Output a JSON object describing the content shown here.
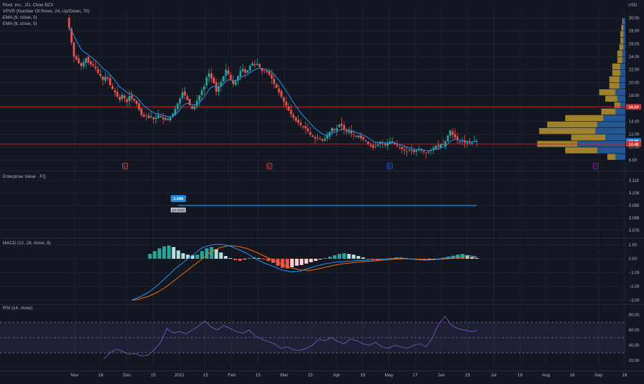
{
  "legend": {
    "title": "Root, Inc., 1D, Cboe BZX",
    "vpvr": "VPVR (Number Of Rows, 24, Up/Down, 70)",
    "ema1": "EMA (9, close, 0)",
    "ema2": "EMA (9, close, 0)"
  },
  "panes": {
    "ev": {
      "title": "Enterprise Value · FQ",
      "badge": "3.098",
      "sub": "Q4 2020"
    },
    "macd": {
      "title": "MACD (12, 26, close, 9)"
    },
    "rsi": {
      "title": "RSI (14, close)"
    }
  },
  "axes": {
    "price_currency": "USD",
    "price_ticks": [
      "30.00",
      "28.00",
      "26.00",
      "24.00",
      "22.00",
      "20.00",
      "18.00",
      "16.00",
      "14.00",
      "12.00",
      "10.00",
      "8.00"
    ],
    "price_tags": {
      "upper": "16.24",
      "mid": "10.96",
      "lower": "10.48"
    },
    "ev_ticks": [
      "3.118",
      "3.108",
      "3.098",
      "3.088",
      "3.078"
    ],
    "macd_ticks": [
      "1.00",
      "0.00",
      "−1.00",
      "−2.00",
      "−3.00"
    ],
    "rsi_ticks": [
      "80.00",
      "60.00",
      "40.00",
      "20.00"
    ],
    "time_labels": [
      "Nov",
      "16",
      "Dec",
      "15",
      "2021",
      "15",
      "Feb",
      "15",
      "Mar",
      "15",
      "Apr",
      "19",
      "May",
      "17",
      "Jun",
      "15",
      "Jul",
      "19",
      "Aug",
      "16",
      "Sep",
      "16"
    ]
  },
  "markers": [
    "E",
    "E",
    "E",
    "E"
  ],
  "colors": {
    "bg": "#131722",
    "grid": "#1e222d",
    "up": "#26a69a",
    "down": "#ef5350",
    "ema": "#2196f3",
    "hline_red": "#b22833",
    "vp_up": "#2962a8",
    "vp_down": "#b8962e",
    "ev_line": "#2196f3",
    "macd_line": "#2196f3",
    "signal_line": "#ff6d00",
    "rsi": "#7e57c2"
  },
  "chart_data": [
    {
      "type": "candlestick",
      "title": "Root, Inc., 1D, Cboe BZX",
      "ylabel": "USD",
      "ylim": [
        7.5,
        31.5
      ],
      "close": [
        28.5,
        26.2,
        24.0,
        23.6,
        23.0,
        22.6,
        23.2,
        23.8,
        23.1,
        22.8,
        22.6,
        22.2,
        21.5,
        21.0,
        20.4,
        20.9,
        20.6,
        19.6,
        19.0,
        18.5,
        17.8,
        17.3,
        18.1,
        17.6,
        17.0,
        17.9,
        17.5,
        17.2,
        16.7,
        15.8,
        15.0,
        14.7,
        14.9,
        14.5,
        14.8,
        14.3,
        14.6,
        15.0,
        14.6,
        14.3,
        14.5,
        14.2,
        14.6,
        15.2,
        15.9,
        16.8,
        17.6,
        18.5,
        18.0,
        17.3,
        16.5,
        15.9,
        16.3,
        17.2,
        18.0,
        18.8,
        19.4,
        20.8,
        21.4,
        20.6,
        19.9,
        18.6,
        19.4,
        20.1,
        21.0,
        22.0,
        21.3,
        20.5,
        19.8,
        20.2,
        21.0,
        21.8,
        22.1,
        21.5,
        21.9,
        22.6,
        23.0,
        22.7,
        22.9,
        22.4,
        21.8,
        21.9,
        21.6,
        21.2,
        20.6,
        19.8,
        19.2,
        18.5,
        17.8,
        17.0,
        16.4,
        15.7,
        15.1,
        14.6,
        14.1,
        13.8,
        13.4,
        13.1,
        12.9,
        12.5,
        11.9,
        11.6,
        11.3,
        11.5,
        11.2,
        11.0,
        11.3,
        11.8,
        12.4,
        13.0,
        12.6,
        12.9,
        13.5,
        13.3,
        12.8,
        12.4,
        12.6,
        12.1,
        11.9,
        11.6,
        11.8,
        11.4,
        11.2,
        10.9,
        10.5,
        10.2,
        9.9,
        10.1,
        10.4,
        10.8,
        10.6,
        10.3,
        10.6,
        10.9,
        10.7,
        10.4,
        10.2,
        10.0,
        9.7,
        9.5,
        9.3,
        9.6,
        9.4,
        9.2,
        9.5,
        9.7,
        9.5,
        9.3,
        9.1,
        9.3,
        9.6,
        9.9,
        10.2,
        10.1,
        10.5,
        10.3,
        10.9,
        11.8,
        12.6,
        11.9,
        11.5,
        11.1,
        10.8,
        10.9,
        10.7,
        10.8,
        10.6,
        10.7,
        10.9,
        11.0
      ],
      "ema9": true
    },
    {
      "type": "bar",
      "title": "VPVR (Number Of Rows, 24, Up/Down, 70)",
      "orientation": "horizontal",
      "price_levels": [
        8.5,
        9.5,
        10.5,
        11.5,
        12.5,
        13.5,
        14.5,
        15.5,
        16.5,
        17.5,
        18.5,
        19.5,
        20.5,
        21.5,
        22.5,
        23.5,
        24.5,
        25.5,
        26.5,
        27.5,
        28.5,
        29.5
      ],
      "series": [
        {
          "name": "Up",
          "values": [
            10,
            28,
            48,
            20,
            30,
            28,
            22,
            10,
            5,
            8,
            10,
            6,
            6,
            5,
            5,
            3,
            3,
            2,
            2,
            2,
            2,
            2
          ]
        },
        {
          "name": "Down",
          "values": [
            8,
            32,
            40,
            34,
            56,
            50,
            38,
            14,
            6,
            12,
            16,
            10,
            10,
            8,
            8,
            5,
            5,
            4,
            3,
            3,
            2,
            1
          ]
        }
      ]
    },
    {
      "type": "line",
      "title": "Enterprise Value · FQ",
      "ylim": [
        3.073,
        3.123
      ],
      "values": [
        3.098
      ]
    },
    {
      "type": "bar",
      "title": "MACD (12, 26, close, 9)",
      "ylim": [
        -3.2,
        1.3
      ],
      "histogram": [
        0.35,
        0.55,
        0.75,
        0.9,
        0.95,
        0.85,
        0.6,
        0.4,
        0.3,
        0.25,
        0.3,
        0.55,
        0.75,
        0.85,
        0.7,
        0.45,
        0.2,
        0.05,
        -0.1,
        -0.15,
        -0.05,
        0.05,
        0.1,
        0.05,
        -0.05,
        -0.15,
        -0.3,
        -0.5,
        -0.65,
        -0.7,
        -0.6,
        -0.5,
        -0.45,
        -0.35,
        -0.25,
        -0.15,
        -0.05,
        0.05,
        0.15,
        0.25,
        0.35,
        0.4,
        0.35,
        0.3,
        0.2,
        0.1,
        0.0,
        -0.05,
        -0.1,
        -0.05,
        0.0,
        0.05,
        0.1,
        0.08,
        0.05,
        0.0,
        -0.05,
        -0.08,
        -0.1,
        -0.06,
        -0.03,
        0.02,
        0.08,
        0.15,
        0.22,
        0.3,
        0.35,
        0.25,
        0.15,
        0.05
      ],
      "macd": [
        -3.0,
        -2.75,
        -2.4,
        -1.9,
        -1.3,
        -0.7,
        -0.2,
        0.3,
        0.8,
        1.0,
        1.05,
        0.95,
        0.7,
        0.4,
        0.0,
        -0.3,
        -0.55,
        -0.8,
        -0.95,
        -0.9,
        -0.7,
        -0.5,
        -0.35,
        -0.25,
        -0.2,
        -0.15,
        -0.12,
        -0.1,
        -0.05,
        0.0,
        0.05,
        0.02,
        -0.05,
        -0.1,
        -0.08,
        0.0,
        0.1,
        0.2,
        0.25,
        0.15
      ],
      "signal": [
        -3.0,
        -2.9,
        -2.7,
        -2.4,
        -2.0,
        -1.5,
        -1.0,
        -0.5,
        0.0,
        0.5,
        0.8,
        0.95,
        0.9,
        0.75,
        0.5,
        0.2,
        -0.1,
        -0.4,
        -0.65,
        -0.8,
        -0.85,
        -0.75,
        -0.6,
        -0.45,
        -0.35,
        -0.28,
        -0.22,
        -0.18,
        -0.12,
        -0.07,
        -0.02,
        0.0,
        -0.02,
        -0.05,
        -0.06,
        -0.03,
        0.02,
        0.08,
        0.12,
        0.1
      ]
    },
    {
      "type": "line",
      "title": "RSI (14, close)",
      "ylim": [
        10,
        90
      ],
      "levels": [
        70,
        50,
        30
      ],
      "values": [
        22,
        30,
        35,
        32,
        28,
        29,
        26,
        27,
        34,
        44,
        62,
        56,
        58,
        55,
        60,
        65,
        72,
        64,
        60,
        66,
        62,
        58,
        56,
        60,
        52,
        48,
        45,
        42,
        36,
        38,
        34,
        33,
        36,
        40,
        48,
        46,
        50,
        45,
        42,
        48,
        46,
        42,
        40,
        44,
        38,
        36,
        40,
        38,
        36,
        40,
        42,
        38,
        50,
        68,
        78,
        66,
        62,
        60,
        58,
        59
      ]
    }
  ]
}
